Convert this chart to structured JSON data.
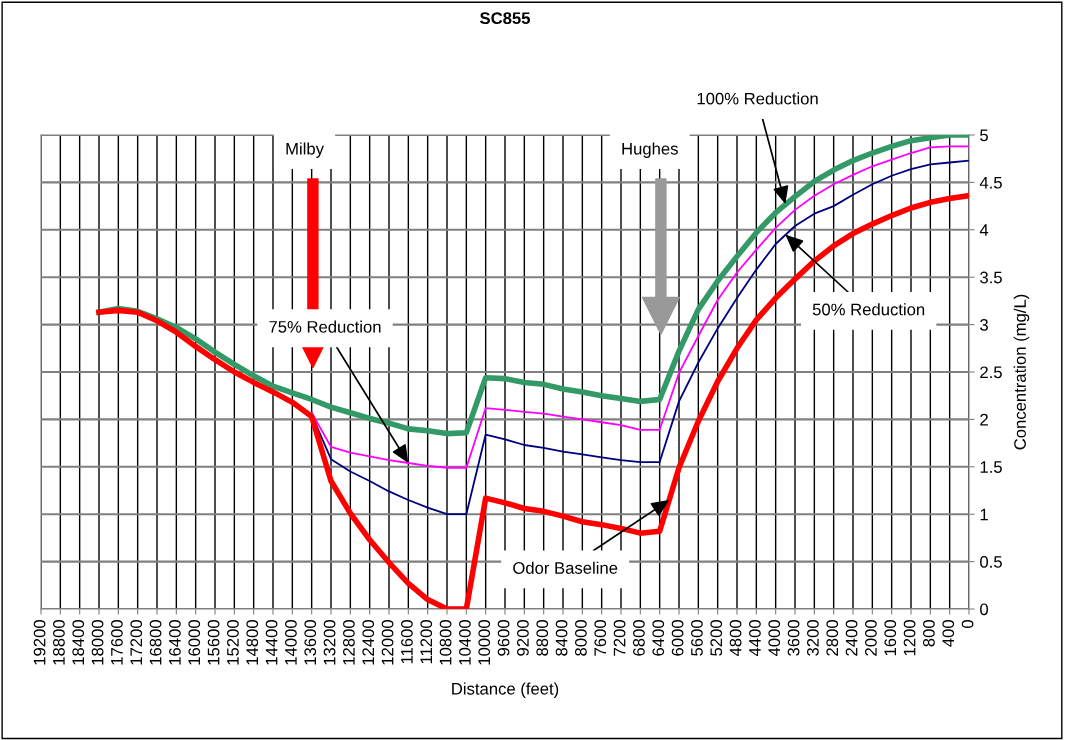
{
  "chart_data": {
    "type": "line",
    "title": "SC855",
    "xlabel": "Distance (feet)",
    "ylabel": "Concentration (mg/L)",
    "x": [
      18000,
      17600,
      17200,
      16800,
      16400,
      16000,
      15600,
      15200,
      14800,
      14400,
      14000,
      13600,
      13200,
      12800,
      12400,
      12000,
      11600,
      11200,
      10800,
      10400,
      10000,
      9600,
      9200,
      8800,
      8400,
      8000,
      7600,
      7200,
      6800,
      6400,
      6000,
      5600,
      5200,
      4800,
      4400,
      4000,
      3600,
      3200,
      2800,
      2400,
      2000,
      1600,
      1200,
      800,
      400,
      0
    ],
    "series": [
      {
        "color": "#ff00ff",
        "values": [
          null,
          null,
          null,
          null,
          null,
          null,
          null,
          null,
          null,
          null,
          null,
          2.07,
          1.71,
          1.65,
          1.61,
          1.57,
          1.54,
          1.51,
          1.49,
          1.49,
          2.12,
          2.1,
          2.08,
          2.06,
          2.03,
          2.0,
          1.97,
          1.94,
          1.89,
          1.89,
          2.49,
          2.88,
          3.26,
          3.55,
          3.79,
          4.02,
          4.21,
          4.36,
          4.48,
          4.58,
          4.67,
          4.74,
          4.81,
          4.87,
          4.88,
          4.88
        ]
      },
      {
        "color": "#000080",
        "values": [
          null,
          null,
          null,
          null,
          null,
          null,
          null,
          null,
          null,
          null,
          null,
          2.05,
          1.58,
          1.45,
          1.35,
          1.24,
          1.15,
          1.07,
          1.0,
          1.0,
          1.84,
          1.79,
          1.73,
          1.7,
          1.66,
          1.63,
          1.6,
          1.57,
          1.55,
          1.55,
          2.19,
          2.6,
          2.96,
          3.28,
          3.58,
          3.85,
          4.04,
          4.17,
          4.25,
          4.37,
          4.48,
          4.57,
          4.64,
          4.69,
          4.71,
          4.73
        ]
      },
      {
        "color": "#339966",
        "values": [
          3.13,
          3.17,
          3.14,
          3.06,
          2.97,
          2.85,
          2.71,
          2.58,
          2.46,
          2.35,
          2.28,
          2.21,
          2.13,
          2.07,
          2.01,
          1.96,
          1.9,
          1.88,
          1.85,
          1.86,
          2.44,
          2.43,
          2.39,
          2.37,
          2.32,
          2.29,
          2.25,
          2.22,
          2.19,
          2.21,
          2.72,
          3.16,
          3.46,
          3.72,
          3.97,
          4.18,
          4.35,
          4.51,
          4.63,
          4.73,
          4.81,
          4.88,
          4.94,
          4.97,
          5,
          5
        ]
      },
      {
        "color": "#ff0000",
        "values": [
          3.13,
          3.15,
          3.13,
          3.04,
          2.92,
          2.77,
          2.63,
          2.5,
          2.39,
          2.29,
          2.18,
          2.03,
          1.35,
          1.01,
          0.73,
          0.49,
          0.27,
          0.1,
          0,
          0,
          1.17,
          1.12,
          1.06,
          1.03,
          0.98,
          0.92,
          0.89,
          0.85,
          0.8,
          0.82,
          1.49,
          1.98,
          2.4,
          2.75,
          3.05,
          3.28,
          3.48,
          3.67,
          3.83,
          3.96,
          4.06,
          4.15,
          4.23,
          4.29,
          4.33,
          4.36
        ]
      }
    ],
    "annotations": [
      "Milby",
      "Hughes",
      {
        "text": "100% Reduction",
        "x": 3800,
        "y": 4.27
      },
      {
        "text": "75% Reduction",
        "x": 11600,
        "y": 1.54
      },
      {
        "text": "50% Reduction",
        "x": 3800,
        "y": 3.95
      },
      {
        "text": "Odor Baseline",
        "x": 6200,
        "y": 1.15
      }
    ],
    "xlim": [
      19200,
      0
    ],
    "xticks": [
      19200,
      18800,
      18400,
      18000,
      17600,
      17200,
      16800,
      16400,
      16000,
      15600,
      15200,
      14800,
      14400,
      14000,
      13600,
      13200,
      12800,
      12400,
      12000,
      11600,
      11200,
      10800,
      10400,
      10000,
      9600,
      9200,
      8800,
      8400,
      8000,
      7600,
      7200,
      6800,
      6400,
      6000,
      5600,
      5200,
      4800,
      4400,
      4000,
      3600,
      3200,
      2800,
      2400,
      2000,
      1600,
      1200,
      800,
      400,
      0
    ],
    "ylim": [
      0,
      5
    ],
    "yticks": [
      0,
      0.5,
      1,
      1.5,
      2,
      2.5,
      3,
      3.5,
      4,
      4.5,
      5
    ],
    "grid": true,
    "marker": "none",
    "line_style": "solid"
  }
}
